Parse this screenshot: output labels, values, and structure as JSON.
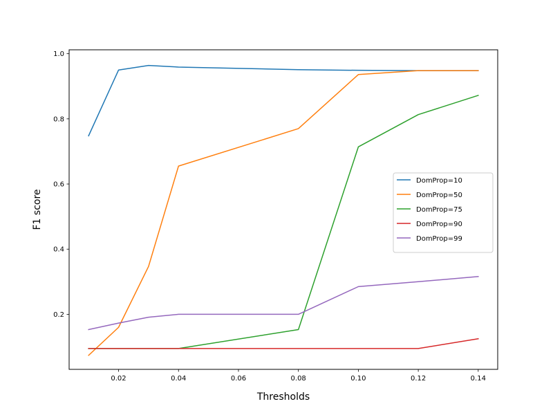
{
  "chart_data": {
    "type": "line",
    "title": "",
    "xlabel": "Thresholds",
    "ylabel": "F1 score",
    "xlim": [
      0.0035,
      0.1465
    ],
    "ylim": [
      0.031,
      1.012
    ],
    "x": [
      0.01,
      0.02,
      0.03,
      0.04,
      0.08,
      0.1,
      0.12,
      0.14
    ],
    "xticks": [
      0.02,
      0.04,
      0.06,
      0.08,
      0.1,
      0.12,
      0.14
    ],
    "xtick_labels": [
      "0.02",
      "0.04",
      "0.06",
      "0.08",
      "0.10",
      "0.12",
      "0.14"
    ],
    "yticks": [
      0.2,
      0.4,
      0.6,
      0.8,
      1.0
    ],
    "ytick_labels": [
      "0.2",
      "0.4",
      "0.6",
      "0.8",
      "1.0"
    ],
    "grid": false,
    "legend_position": "center-right",
    "series": [
      {
        "name": "DomProp=10",
        "color": "#1f77b4",
        "values": [
          0.748,
          0.95,
          0.964,
          0.959,
          0.951,
          0.949,
          0.948,
          0.948
        ]
      },
      {
        "name": "DomProp=50",
        "color": "#ff7f0e",
        "values": [
          0.074,
          0.16,
          0.347,
          0.655,
          0.77,
          0.936,
          0.948,
          0.948
        ]
      },
      {
        "name": "DomProp=75",
        "color": "#2ca02c",
        "values": [
          0.095,
          0.095,
          0.095,
          0.095,
          0.153,
          0.714,
          0.813,
          0.872
        ]
      },
      {
        "name": "DomProp=90",
        "color": "#d62728",
        "values": [
          0.095,
          0.095,
          0.095,
          0.095,
          0.095,
          0.095,
          0.095,
          0.125
        ]
      },
      {
        "name": "DomProp=99",
        "color": "#9467bd",
        "values": [
          0.153,
          0.173,
          0.191,
          0.2,
          0.2,
          0.285,
          0.3,
          0.316
        ]
      }
    ]
  }
}
